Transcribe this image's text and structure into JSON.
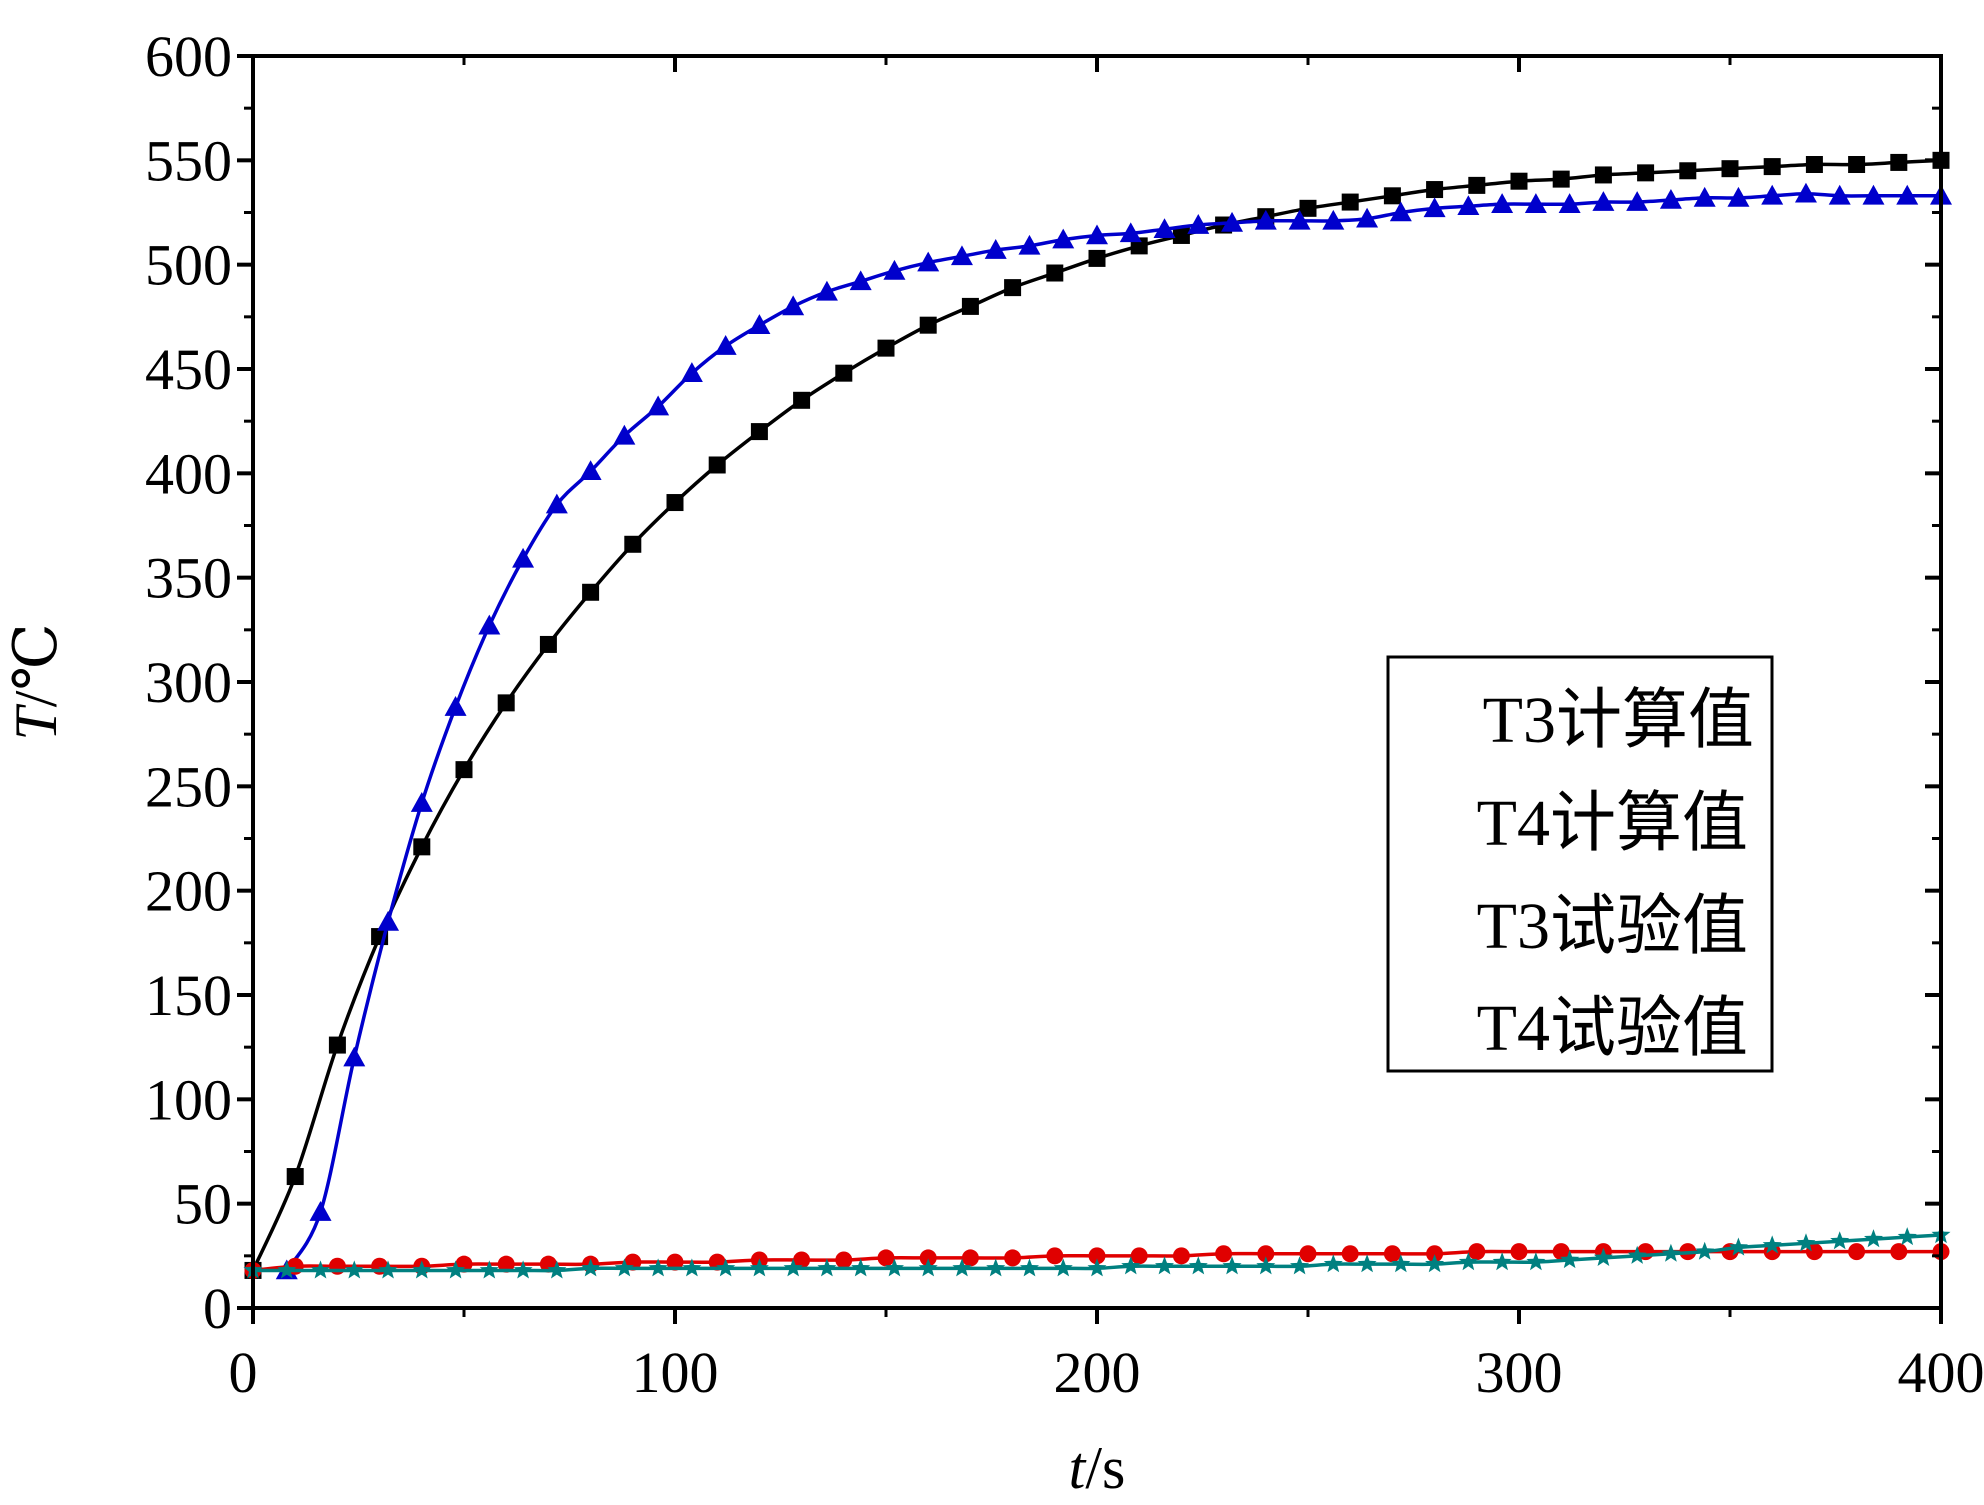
{
  "chart_data": {
    "type": "line",
    "xlabel_italic": "t",
    "xlabel_unit": "/s",
    "ylabel_italic": "T",
    "ylabel_unit": "/℃",
    "xlim": [
      0,
      400
    ],
    "ylim": [
      0,
      600
    ],
    "x_ticks": [
      0,
      100,
      200,
      300,
      400
    ],
    "y_ticks": [
      0,
      50,
      100,
      150,
      200,
      250,
      300,
      350,
      400,
      450,
      500,
      550,
      600
    ],
    "grid": false,
    "legend_position": "right",
    "series": [
      {
        "name": "T3计算值",
        "color": "#000000",
        "marker": "square",
        "points": [
          [
            0,
            18
          ],
          [
            10,
            63
          ],
          [
            20,
            126
          ],
          [
            30,
            178
          ],
          [
            40,
            221
          ],
          [
            50,
            258
          ],
          [
            60,
            290
          ],
          [
            70,
            318
          ],
          [
            80,
            343
          ],
          [
            90,
            366
          ],
          [
            100,
            386
          ],
          [
            110,
            404
          ],
          [
            120,
            420
          ],
          [
            130,
            435
          ],
          [
            140,
            448
          ],
          [
            150,
            460
          ],
          [
            160,
            471
          ],
          [
            170,
            480
          ],
          [
            180,
            489
          ],
          [
            190,
            496
          ],
          [
            200,
            503
          ],
          [
            210,
            509
          ],
          [
            220,
            514
          ],
          [
            230,
            519
          ],
          [
            240,
            523
          ],
          [
            250,
            527
          ],
          [
            260,
            530
          ],
          [
            270,
            533
          ],
          [
            280,
            536
          ],
          [
            290,
            538
          ],
          [
            300,
            540
          ],
          [
            310,
            541
          ],
          [
            320,
            543
          ],
          [
            330,
            544
          ],
          [
            340,
            545
          ],
          [
            350,
            546
          ],
          [
            360,
            547
          ],
          [
            370,
            548
          ],
          [
            380,
            548
          ],
          [
            390,
            549
          ],
          [
            400,
            550
          ]
        ]
      },
      {
        "name": "T4计算值",
        "color": "#0000cc",
        "marker": "triangle",
        "points": [
          [
            8,
            18
          ],
          [
            16,
            46
          ],
          [
            24,
            120
          ],
          [
            32,
            185
          ],
          [
            40,
            242
          ],
          [
            48,
            288
          ],
          [
            56,
            327
          ],
          [
            64,
            359
          ],
          [
            72,
            385
          ],
          [
            80,
            401
          ],
          [
            88,
            418
          ],
          [
            96,
            432
          ],
          [
            104,
            448
          ],
          [
            112,
            461
          ],
          [
            120,
            471
          ],
          [
            128,
            480
          ],
          [
            136,
            487
          ],
          [
            144,
            492
          ],
          [
            152,
            497
          ],
          [
            160,
            501
          ],
          [
            168,
            504
          ],
          [
            176,
            507
          ],
          [
            184,
            509
          ],
          [
            192,
            512
          ],
          [
            200,
            514
          ],
          [
            208,
            515
          ],
          [
            216,
            517
          ],
          [
            224,
            519
          ],
          [
            232,
            520
          ],
          [
            240,
            521
          ],
          [
            248,
            521
          ],
          [
            256,
            521
          ],
          [
            264,
            522
          ],
          [
            272,
            525
          ],
          [
            280,
            527
          ],
          [
            288,
            528
          ],
          [
            296,
            529
          ],
          [
            304,
            529
          ],
          [
            312,
            529
          ],
          [
            320,
            530
          ],
          [
            328,
            530
          ],
          [
            336,
            531
          ],
          [
            344,
            532
          ],
          [
            352,
            532
          ],
          [
            360,
            533
          ],
          [
            368,
            534
          ],
          [
            376,
            533
          ],
          [
            384,
            533
          ],
          [
            392,
            533
          ],
          [
            400,
            533
          ]
        ]
      },
      {
        "name": "T3试验值",
        "color": "#e00000",
        "marker": "circle",
        "points": [
          [
            0,
            18
          ],
          [
            10,
            20
          ],
          [
            20,
            20
          ],
          [
            30,
            20
          ],
          [
            40,
            20
          ],
          [
            50,
            21
          ],
          [
            60,
            21
          ],
          [
            70,
            21
          ],
          [
            80,
            21
          ],
          [
            90,
            22
          ],
          [
            100,
            22
          ],
          [
            110,
            22
          ],
          [
            120,
            23
          ],
          [
            130,
            23
          ],
          [
            140,
            23
          ],
          [
            150,
            24
          ],
          [
            160,
            24
          ],
          [
            170,
            24
          ],
          [
            180,
            24
          ],
          [
            190,
            25
          ],
          [
            200,
            25
          ],
          [
            210,
            25
          ],
          [
            220,
            25
          ],
          [
            230,
            26
          ],
          [
            240,
            26
          ],
          [
            250,
            26
          ],
          [
            260,
            26
          ],
          [
            270,
            26
          ],
          [
            280,
            26
          ],
          [
            290,
            27
          ],
          [
            300,
            27
          ],
          [
            310,
            27
          ],
          [
            320,
            27
          ],
          [
            330,
            27
          ],
          [
            340,
            27
          ],
          [
            350,
            27
          ],
          [
            360,
            27
          ],
          [
            370,
            27
          ],
          [
            380,
            27
          ],
          [
            390,
            27
          ],
          [
            400,
            27
          ]
        ]
      },
      {
        "name": "T4试验值",
        "color": "#008080",
        "marker": "star",
        "points": [
          [
            0,
            18
          ],
          [
            8,
            18
          ],
          [
            16,
            18
          ],
          [
            24,
            18
          ],
          [
            32,
            18
          ],
          [
            40,
            18
          ],
          [
            48,
            18
          ],
          [
            56,
            18
          ],
          [
            64,
            18
          ],
          [
            72,
            18
          ],
          [
            80,
            19
          ],
          [
            88,
            19
          ],
          [
            96,
            19
          ],
          [
            104,
            19
          ],
          [
            112,
            19
          ],
          [
            120,
            19
          ],
          [
            128,
            19
          ],
          [
            136,
            19
          ],
          [
            144,
            19
          ],
          [
            152,
            19
          ],
          [
            160,
            19
          ],
          [
            168,
            19
          ],
          [
            176,
            19
          ],
          [
            184,
            19
          ],
          [
            192,
            19
          ],
          [
            200,
            19
          ],
          [
            208,
            20
          ],
          [
            216,
            20
          ],
          [
            224,
            20
          ],
          [
            232,
            20
          ],
          [
            240,
            20
          ],
          [
            248,
            20
          ],
          [
            256,
            21
          ],
          [
            264,
            21
          ],
          [
            272,
            21
          ],
          [
            280,
            21
          ],
          [
            288,
            22
          ],
          [
            296,
            22
          ],
          [
            304,
            22
          ],
          [
            312,
            23
          ],
          [
            320,
            24
          ],
          [
            328,
            25
          ],
          [
            336,
            26
          ],
          [
            344,
            27
          ],
          [
            352,
            29
          ],
          [
            360,
            30
          ],
          [
            368,
            31
          ],
          [
            376,
            32
          ],
          [
            384,
            33
          ],
          [
            392,
            34
          ],
          [
            400,
            35
          ]
        ]
      }
    ]
  }
}
